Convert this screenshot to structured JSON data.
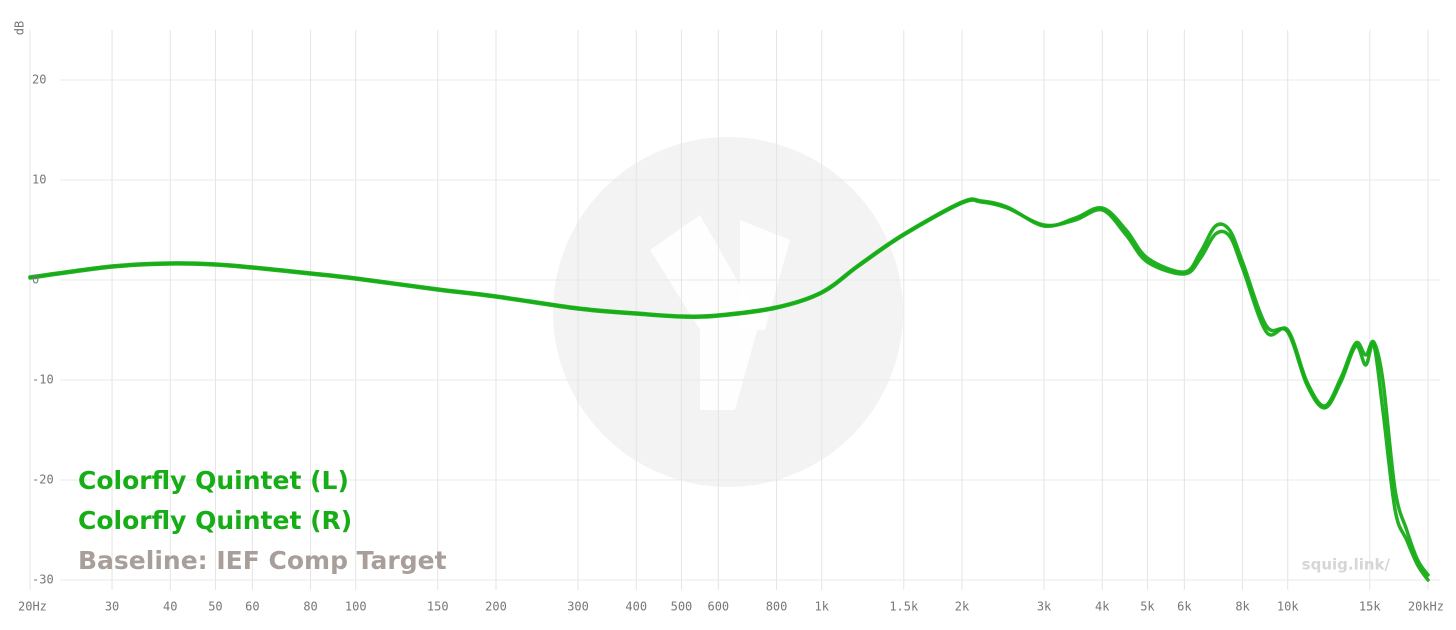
{
  "chart_data": {
    "type": "line",
    "y_label": "dB",
    "baseline": "Baseline: IEF Comp Target",
    "baseline_color": "#a89f9a",
    "watermark": "squig.link/",
    "x_log": true,
    "grid": true,
    "xlim": [
      20,
      20000
    ],
    "ylim": [
      -32,
      25
    ],
    "xticks": [
      {
        "value": 20,
        "label": "20Hz"
      },
      30,
      40,
      50,
      60,
      80,
      100,
      150,
      200,
      300,
      400,
      500,
      600,
      800,
      {
        "value": 1000,
        "label": "1k"
      },
      {
        "value": 1500,
        "label": "1.5k"
      },
      {
        "value": 2000,
        "label": "2k"
      },
      {
        "value": 3000,
        "label": "3k"
      },
      {
        "value": 4000,
        "label": "4k"
      },
      {
        "value": 5000,
        "label": "5k"
      },
      {
        "value": 6000,
        "label": "6k"
      },
      {
        "value": 8000,
        "label": "8k"
      },
      {
        "value": 10000,
        "label": "10k"
      },
      {
        "value": 15000,
        "label": "15k"
      },
      {
        "value": 20000,
        "label": "20kHz"
      }
    ],
    "yticks": [
      20,
      10,
      0,
      -10,
      -20,
      -30
    ],
    "x": [
      20,
      30,
      40,
      50,
      60,
      80,
      100,
      150,
      200,
      300,
      400,
      500,
      600,
      800,
      1000,
      1200,
      1500,
      2000,
      2200,
      2500,
      3000,
      3500,
      4000,
      4500,
      5000,
      6000,
      6500,
      7000,
      7500,
      8000,
      9000,
      10000,
      11000,
      12000,
      13000,
      14000,
      14700,
      15300,
      16000,
      17000,
      18000,
      19000,
      20000
    ],
    "series": [
      {
        "name": "Colorfly Quintet (L)",
        "color": "#17ad17",
        "values": [
          0.3,
          1.4,
          1.7,
          1.6,
          1.3,
          0.7,
          0.2,
          -0.9,
          -1.6,
          -2.8,
          -3.3,
          -3.6,
          -3.5,
          -2.7,
          -1.2,
          1.5,
          4.6,
          7.8,
          7.9,
          7.3,
          5.4,
          6.2,
          7.2,
          5.0,
          2.2,
          0.8,
          2.8,
          5.4,
          5.0,
          1.8,
          -4.6,
          -5.2,
          -10.5,
          -12.8,
          -10.2,
          -6.6,
          -8.5,
          -6.5,
          -13,
          -23,
          -26,
          -28.5,
          -30
        ]
      },
      {
        "name": "Colorfly Quintet (R)",
        "color": "#17ad17",
        "values": [
          0.2,
          1.3,
          1.6,
          1.5,
          1.2,
          0.6,
          0.1,
          -1.0,
          -1.7,
          -2.9,
          -3.4,
          -3.7,
          -3.6,
          -2.8,
          -1.3,
          1.4,
          4.5,
          7.7,
          7.8,
          7.2,
          5.5,
          6.0,
          7.0,
          4.5,
          1.8,
          0.6,
          2.2,
          4.6,
          4.4,
          1.2,
          -5.2,
          -5.0,
          -10.2,
          -12.6,
          -9.8,
          -6.3,
          -7.5,
          -6.2,
          -10,
          -21,
          -25,
          -28,
          -29.5
        ]
      }
    ]
  }
}
